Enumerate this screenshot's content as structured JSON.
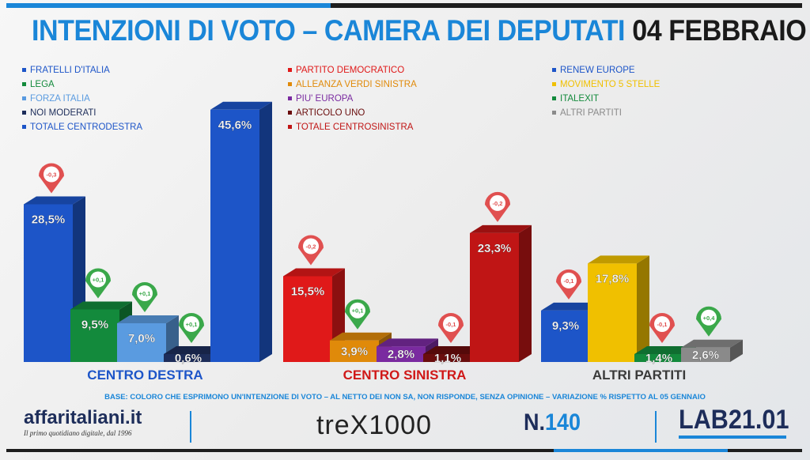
{
  "title": {
    "main": "INTENZIONI DI VOTO – CAMERA DEI DEPUTATI",
    "date": "04 FEBBRAIO"
  },
  "legend": {
    "col1": [
      {
        "label": "FRATELLI D'ITALIA",
        "color": "#1d55c8"
      },
      {
        "label": "LEGA",
        "color": "#138a3c"
      },
      {
        "label": "FORZA ITALIA",
        "color": "#5a9be0"
      },
      {
        "label": "NOI MODERATI",
        "color": "#1d2d5a"
      },
      {
        "label": "TOTALE CENTRODESTRA",
        "color": "#1d55c8"
      }
    ],
    "col2": [
      {
        "label": "PARTITO DEMOCRATICO",
        "color": "#e01919"
      },
      {
        "label": "ALLEANZA VERDI SINISTRA",
        "color": "#e08a0a"
      },
      {
        "label": "PIU' EUROPA",
        "color": "#7a2aa0"
      },
      {
        "label": "ARTICOLO UNO",
        "color": "#6a0d0d"
      },
      {
        "label": "TOTALE CENTROSINISTRA",
        "color": "#c01515"
      }
    ],
    "col3": [
      {
        "label": "RENEW EUROPE",
        "color": "#1d55c8"
      },
      {
        "label": "MOVIMENTO 5 STELLE",
        "color": "#f0c000"
      },
      {
        "label": "ITALEXIT",
        "color": "#138a3c"
      },
      {
        "label": "ALTRI PARTITI",
        "color": "#8a8a8a"
      }
    ]
  },
  "chart_data": {
    "type": "bar",
    "title": "INTENZIONI DI VOTO – CAMERA DEI DEPUTATI 04 FEBBRAIO",
    "xlabel": "",
    "ylabel": "",
    "grid": false,
    "groups": [
      {
        "name": "CENTRO DESTRA",
        "bars": [
          {
            "party": "FRATELLI D'ITALIA",
            "label": "28,5%",
            "value": 28.5,
            "change": "-0,3",
            "dir": "down",
            "color": "#1d55c8"
          },
          {
            "party": "LEGA",
            "label": "9,5%",
            "value": 9.5,
            "change": "+0,1",
            "dir": "up",
            "color": "#138a3c"
          },
          {
            "party": "FORZA ITALIA",
            "label": "7,0%",
            "value": 7.0,
            "change": "+0,1",
            "dir": "up",
            "color": "#5a9be0"
          },
          {
            "party": "NOI MODERATI",
            "label": "0,6%",
            "value": 0.6,
            "change": "+0,1",
            "dir": "up",
            "color": "#1d2d5a"
          },
          {
            "party": "TOTALE CENTRODESTRA",
            "label": "45,6%",
            "value": 45.6,
            "change": "",
            "dir": "",
            "color": "#1d55c8"
          }
        ]
      },
      {
        "name": "CENTRO SINISTRA",
        "bars": [
          {
            "party": "PARTITO DEMOCRATICO",
            "label": "15,5%",
            "value": 15.5,
            "change": "-0,2",
            "dir": "down",
            "color": "#e01919"
          },
          {
            "party": "ALLEANZA VERDI SINISTRA",
            "label": "3,9%",
            "value": 3.9,
            "change": "+0,1",
            "dir": "up",
            "color": "#e08a0a"
          },
          {
            "party": "PIU' EUROPA",
            "label": "2,8%",
            "value": 2.8,
            "change": "",
            "dir": "",
            "color": "#7a2aa0"
          },
          {
            "party": "ARTICOLO UNO",
            "label": "1,1%",
            "value": 1.1,
            "change": "-0,1",
            "dir": "down",
            "color": "#6a0d0d"
          },
          {
            "party": "TOTALE CENTROSINISTRA",
            "label": "23,3%",
            "value": 23.3,
            "change": "-0,2",
            "dir": "down",
            "color": "#c01515"
          }
        ]
      },
      {
        "name": "ALTRI PARTITI",
        "bars": [
          {
            "party": "RENEW EUROPE",
            "label": "9,3%",
            "value": 9.3,
            "change": "-0,1",
            "dir": "down",
            "color": "#1d55c8"
          },
          {
            "party": "MOVIMENTO 5 STELLE",
            "label": "17,8%",
            "value": 17.8,
            "change": "",
            "dir": "",
            "color": "#f0c000"
          },
          {
            "party": "ITALEXIT",
            "label": "1,4%",
            "value": 1.4,
            "change": "-0,1",
            "dir": "down",
            "color": "#138a3c"
          },
          {
            "party": "ALTRI PARTITI",
            "label": "2,6%",
            "value": 2.6,
            "change": "+0,4",
            "dir": "up",
            "color": "#8a8a8a"
          }
        ]
      }
    ],
    "ylim": [
      0,
      46
    ]
  },
  "colors": {
    "up": "#3aa84a",
    "down": "#e05050",
    "accent": "#1a86d8",
    "navy": "#1d2d5a"
  },
  "footer": {
    "note": "BASE: COLORO CHE ESPRIMONO UN'INTENZIONE DI VOTO – AL NETTO DEI NON SA, NON RISPONDE, SENZA OPINIONE – VARIAZIONE % RISPETTO AL 05 GENNAIO",
    "affari_name": "affaritaliani.it",
    "affari_tagline": "Il primo quotidiano digitale, dal 1996",
    "trex": "treX1000",
    "issue_prefix": "N.",
    "issue_number": "140",
    "lab": "LAB21.01"
  }
}
